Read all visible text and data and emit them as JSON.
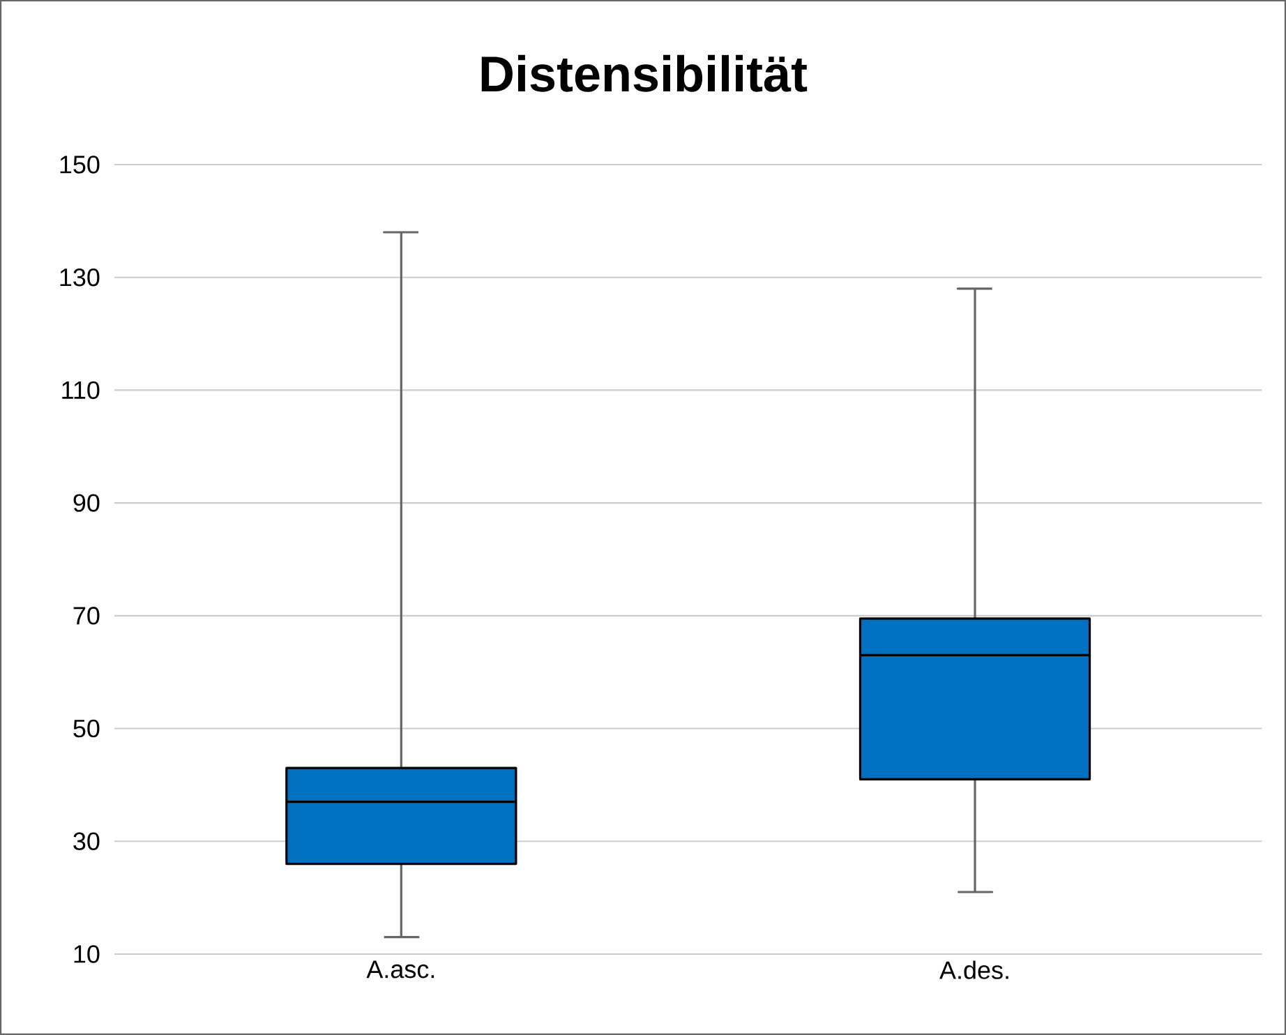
{
  "chart_data": {
    "type": "box",
    "title": "Distensibilität",
    "categories": [
      "A.asc.",
      "A.des."
    ],
    "boxes": [
      {
        "low": 13,
        "q1": 26,
        "median": 37,
        "q3": 43,
        "high": 138
      },
      {
        "low": 21,
        "q1": 41,
        "median": 63,
        "q3": 69.5,
        "high": 128
      }
    ],
    "color": "#0070c0",
    "ylim": [
      10,
      150
    ],
    "yticks": [
      10,
      30,
      50,
      70,
      90,
      110,
      130,
      150
    ],
    "grid": "y"
  }
}
